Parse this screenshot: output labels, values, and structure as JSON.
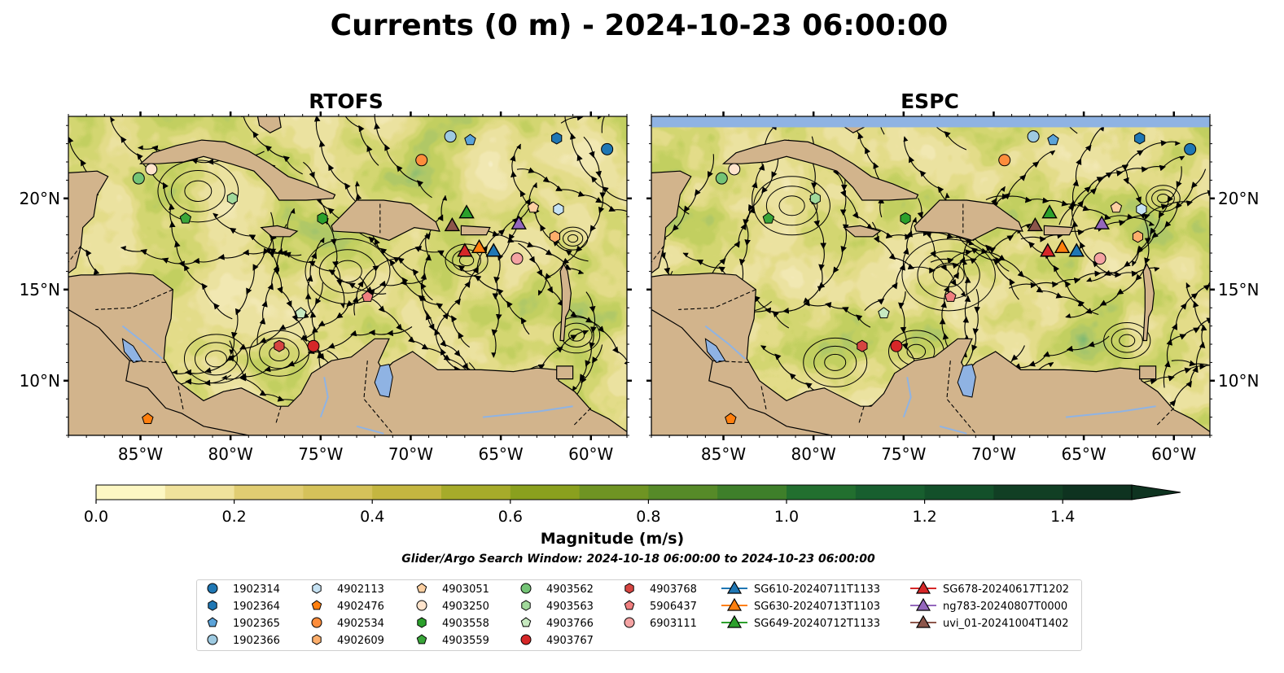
{
  "figure": {
    "title": "Currents (0 m) - 2024-10-23 06:00:00",
    "subtitle": "Glider/Argo Search Window: 2024-10-18 06:00:00 to 2024-10-23 06:00:00"
  },
  "colors": {
    "land": "#d2b48c",
    "lake": "#8fb3e3",
    "ocean_mask": "#8fb3e3",
    "streamline": "#000000",
    "country_border": "#000000"
  },
  "chart_data": [
    {
      "type": "heatmap",
      "title": "RTOFS",
      "xlabel": "",
      "ylabel": "",
      "xlim": [
        -89,
        -58
      ],
      "ylim": [
        7,
        24.5
      ],
      "x_ticks": [
        -85,
        -80,
        -75,
        -70,
        -65,
        -60
      ],
      "x_tick_labels": [
        "85°W",
        "80°W",
        "75°W",
        "70°W",
        "65°W",
        "60°W"
      ],
      "y_ticks": [
        10,
        15,
        20
      ],
      "y_tick_labels": [
        "10°N",
        "15°N",
        "20°N"
      ],
      "y_axis_side": "left",
      "field": "surface current magnitude (m/s) with streamlines",
      "grid": false
    },
    {
      "type": "heatmap",
      "title": "ESPC",
      "xlabel": "",
      "ylabel": "",
      "xlim": [
        -89,
        -58
      ],
      "ylim": [
        7,
        24.5
      ],
      "x_ticks": [
        -85,
        -80,
        -75,
        -70,
        -65,
        -60
      ],
      "x_tick_labels": [
        "85°W",
        "80°W",
        "75°W",
        "70°W",
        "65°W",
        "60°W"
      ],
      "y_ticks": [
        10,
        15,
        20
      ],
      "y_tick_labels": [
        "10°N",
        "15°N",
        "20°N"
      ],
      "y_axis_side": "right",
      "field": "surface current magnitude (m/s) with streamlines",
      "grid": false
    }
  ],
  "colorbar": {
    "label": "Magnitude (m/s)",
    "min": 0.0,
    "max": 1.5,
    "extend": "max",
    "ticks": [
      0.0,
      0.2,
      0.4,
      0.6,
      0.8,
      1.0,
      1.2,
      1.4
    ],
    "tick_labels": [
      "0.0",
      "0.2",
      "0.4",
      "0.6",
      "0.8",
      "1.0",
      "1.2",
      "1.4"
    ],
    "levels": [
      "#fdf7c3",
      "#f0e29c",
      "#e1cd72",
      "#d5c25a",
      "#c4b640",
      "#a6ab2a",
      "#8aa01e",
      "#6f9423",
      "#568a28",
      "#3e7f2a",
      "#226f2f",
      "#185f2f",
      "#13502a",
      "#113f24",
      "#0e3320"
    ]
  },
  "floats": [
    {
      "id": "1902314",
      "marker": "circle",
      "color": "#1f77b4",
      "lon": -59.1,
      "lat": 22.7
    },
    {
      "id": "1902364",
      "marker": "hexagon",
      "color": "#1f77b4",
      "lon": -61.9,
      "lat": 23.3
    },
    {
      "id": "1902365",
      "marker": "pentagon",
      "color": "#5ba3d9",
      "lon": -66.7,
      "lat": 23.2
    },
    {
      "id": "1902366",
      "marker": "circle",
      "color": "#9ecae1",
      "lon": -67.8,
      "lat": 23.4
    },
    {
      "id": "4902113",
      "marker": "hexagon",
      "color": "#c6e2f3",
      "lon": -61.8,
      "lat": 19.4
    },
    {
      "id": "4902476",
      "marker": "pentagon",
      "color": "#ff7f0e",
      "lon": -84.6,
      "lat": 7.9
    },
    {
      "id": "4902534",
      "marker": "circle",
      "color": "#fd8d3c",
      "lon": -69.4,
      "lat": 22.1
    },
    {
      "id": "4902609",
      "marker": "hexagon",
      "color": "#fdae6b",
      "lon": -62.0,
      "lat": 17.9
    },
    {
      "id": "4903051",
      "marker": "pentagon",
      "color": "#fdd0a2",
      "lon": -63.2,
      "lat": 19.5
    },
    {
      "id": "4903250",
      "marker": "circle",
      "color": "#ffe4cc",
      "lon": -84.4,
      "lat": 21.6
    },
    {
      "id": "4903558",
      "marker": "hexagon",
      "color": "#2ca02c",
      "lon": -74.9,
      "lat": 18.9
    },
    {
      "id": "4903559",
      "marker": "pentagon",
      "color": "#3aa63a",
      "lon": -82.5,
      "lat": 18.9
    },
    {
      "id": "4903562",
      "marker": "circle",
      "color": "#74c476",
      "lon": -85.1,
      "lat": 21.1
    },
    {
      "id": "4903563",
      "marker": "hexagon",
      "color": "#a1d99b",
      "lon": -79.9,
      "lat": 20.0
    },
    {
      "id": "4903766",
      "marker": "pentagon",
      "color": "#c7e9c0",
      "lon": -76.1,
      "lat": 13.7
    },
    {
      "id": "4903767",
      "marker": "circle",
      "color": "#d62728",
      "lon": -75.4,
      "lat": 11.9
    },
    {
      "id": "4903768",
      "marker": "hexagon",
      "color": "#d64541",
      "lon": -77.3,
      "lat": 11.9
    },
    {
      "id": "5906437",
      "marker": "pentagon",
      "color": "#f07f7f",
      "lon": -72.4,
      "lat": 14.6
    },
    {
      "id": "6903111",
      "marker": "circle",
      "color": "#f4a3a3",
      "lon": -64.1,
      "lat": 16.7
    }
  ],
  "gliders": [
    {
      "id": "SG610-20240711T1133",
      "color": "#1f77b4",
      "lon": -65.4,
      "lat": 17.1
    },
    {
      "id": "SG630-20240713T1103",
      "color": "#ff7f0e",
      "lon": -66.2,
      "lat": 17.3
    },
    {
      "id": "SG649-20240712T1133",
      "color": "#2ca02c",
      "lon": -66.9,
      "lat": 19.2
    },
    {
      "id": "SG678-20240617T1202",
      "color": "#d62728",
      "lon": -67.0,
      "lat": 17.1
    },
    {
      "id": "ng783-20240807T0000",
      "color": "#9467bd",
      "lon": -64.0,
      "lat": 18.6
    },
    {
      "id": "uvi_01-20241004T1402",
      "color": "#8c564b",
      "lon": -67.7,
      "lat": 18.5
    }
  ],
  "legend_columns": [
    [
      "1902314",
      "1902364",
      "1902365",
      "1902366"
    ],
    [
      "4902113",
      "4902476",
      "4902534",
      "4902609"
    ],
    [
      "4903051",
      "4903250",
      "4903558",
      "4903559"
    ],
    [
      "4903562",
      "4903563",
      "4903766",
      "4903767"
    ],
    [
      "4903768",
      "5906437",
      "6903111"
    ],
    [
      "SG610-20240711T1133",
      "SG630-20240713T1103",
      "SG649-20240712T1133"
    ],
    [
      "SG678-20240617T1202",
      "ng783-20240807T0000",
      "uvi_01-20241004T1402"
    ]
  ]
}
